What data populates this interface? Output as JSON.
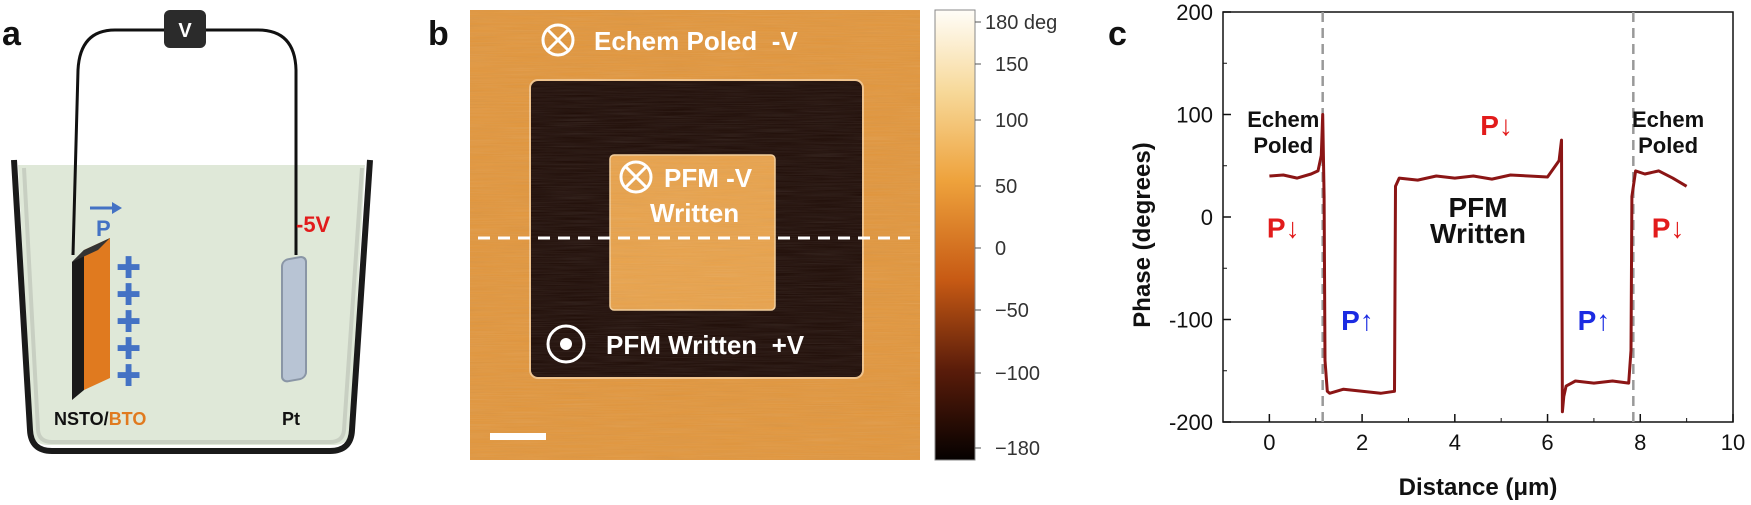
{
  "panels": {
    "a": {
      "letter": "a",
      "voltmeter": "V",
      "polarization": "P",
      "voltage": "-5V",
      "left_electrode_prefix": "NSTO/",
      "left_electrode_suffix": "BTO",
      "right_electrode": "Pt",
      "colors": {
        "bto": "#e07a1f",
        "accent_blue": "#4472c4",
        "red": "#e21b1b",
        "solution": "#dfe8d8"
      }
    },
    "b": {
      "letter": "b",
      "label_top_symbol": "⊗",
      "label_top": "Echem Poled  -V",
      "label_center_line1": "PFM -V",
      "label_center_line2": "Written",
      "label_center_symbol": "⊗",
      "label_bottom_symbol": "⊙",
      "label_bottom": "PFM Written  +V",
      "colorbar_ticks": [
        "180 deg",
        "150",
        "100",
        "50",
        "0",
        "−50",
        "−100",
        "−180"
      ],
      "colors": {
        "bright": "#e2963c",
        "dark": "#1e0b05"
      }
    }
  },
  "chart_data": {
    "type": "line",
    "panel_letter": "c",
    "xlabel": "Distance (μm)",
    "ylabel": "Phase (degrees)",
    "xlim": [
      -1,
      10
    ],
    "ylim": [
      -200,
      200
    ],
    "xticks": [
      0,
      2,
      4,
      6,
      8,
      10
    ],
    "yticks": [
      -200,
      -100,
      0,
      100,
      200
    ],
    "grid": false,
    "dashed_vlines": [
      1.15,
      7.85
    ],
    "series": [
      {
        "color": "#8b1515",
        "x": [
          0,
          0.3,
          0.6,
          0.9,
          1.05,
          1.12,
          1.15,
          1.18,
          1.2,
          1.25,
          1.3,
          1.6,
          2.0,
          2.4,
          2.7,
          2.72,
          2.8,
          3.2,
          3.6,
          4.0,
          4.4,
          4.8,
          5.2,
          5.6,
          6.0,
          6.25,
          6.3,
          6.32,
          6.35,
          6.4,
          6.6,
          7.0,
          7.4,
          7.75,
          7.8,
          7.82,
          7.9,
          8.1,
          8.4,
          8.7,
          9.0
        ],
        "y": [
          40,
          41,
          38,
          42,
          45,
          60,
          100,
          20,
          -140,
          -170,
          -172,
          -168,
          -170,
          -172,
          -170,
          30,
          38,
          36,
          40,
          38,
          40,
          37,
          41,
          40,
          39,
          55,
          75,
          -190,
          -175,
          -165,
          -160,
          -162,
          -160,
          -162,
          -130,
          20,
          45,
          42,
          45,
          38,
          30
        ]
      }
    ],
    "annotations": [
      {
        "text": "Echem\nPoled",
        "x": 0.3,
        "y": 88,
        "color": "#111111"
      },
      {
        "text": "Echem\nPoled",
        "x": 8.6,
        "y": 88,
        "color": "#111111"
      },
      {
        "text": "PFM\nWritten",
        "x": 4.5,
        "y": 0,
        "color": "#111111"
      },
      {
        "text": "P↓",
        "x": 0.3,
        "y": -20,
        "color": "#e21b1b"
      },
      {
        "text": "P↓",
        "x": 4.9,
        "y": 80,
        "color": "#e21b1b"
      },
      {
        "text": "P↓",
        "x": 8.6,
        "y": -20,
        "color": "#e21b1b"
      },
      {
        "text": "P↑",
        "x": 1.9,
        "y": -110,
        "color": "#1b2be2"
      },
      {
        "text": "P↑",
        "x": 7.0,
        "y": -110,
        "color": "#1b2be2"
      }
    ]
  }
}
